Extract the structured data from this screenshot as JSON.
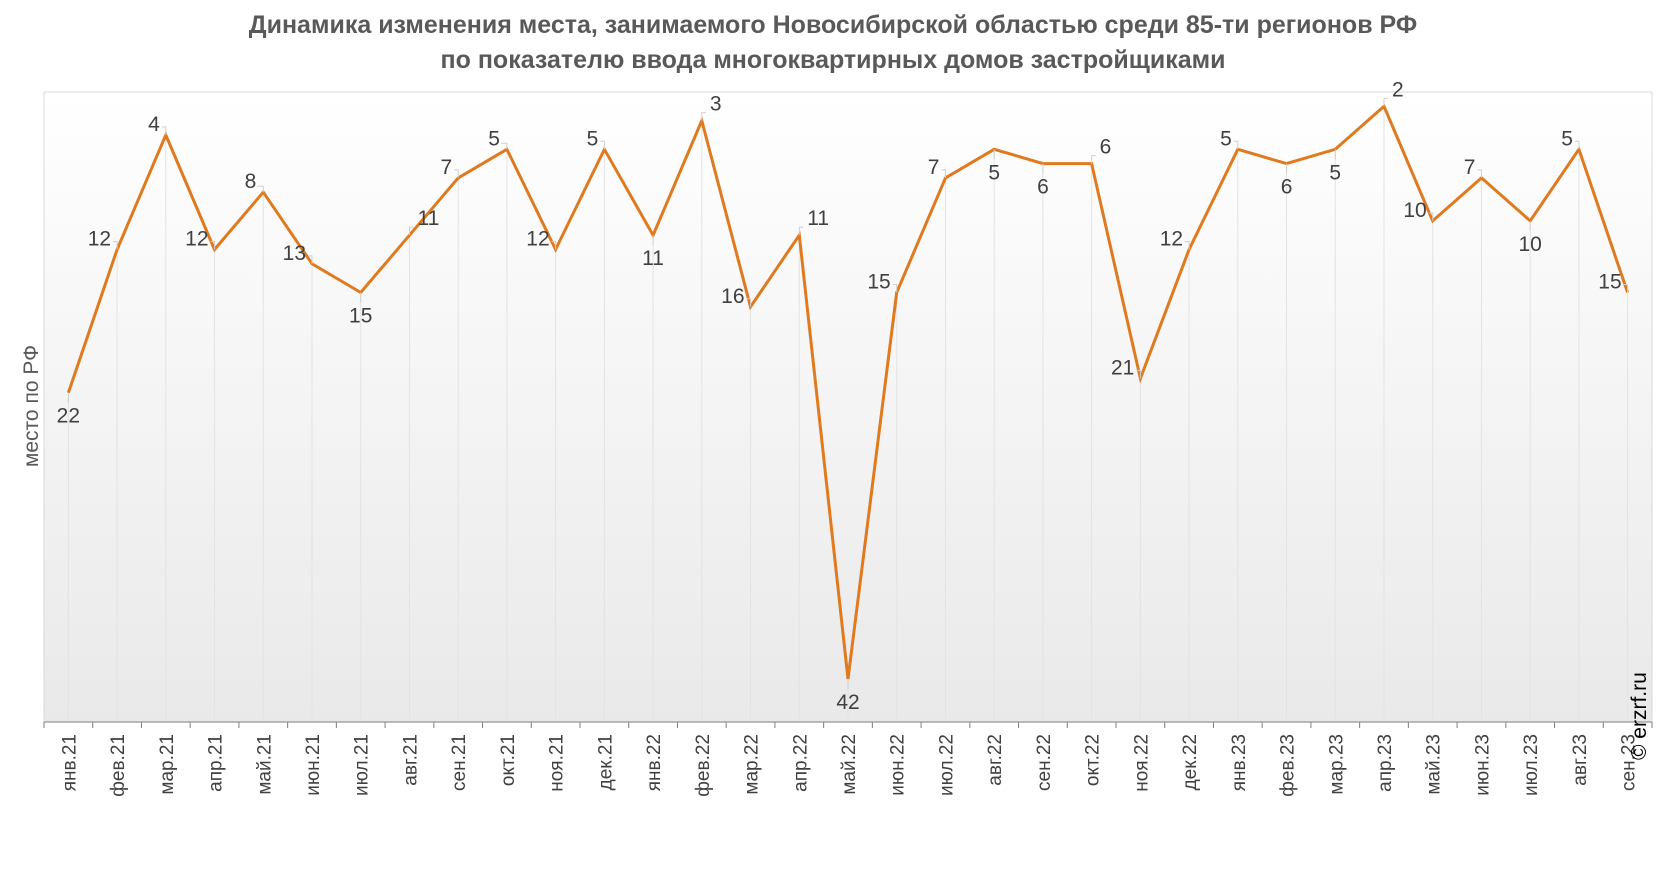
{
  "chart_data": {
    "type": "line",
    "title": "Динамика изменения места, занимаемого Новосибирской областью среди 85-ти регионов РФ",
    "subtitle": "по показателю ввода многоквартирных домов застройщиками",
    "ylabel": "место по РФ",
    "xlabel": "",
    "y_inverted": true,
    "ylim": [
      1,
      45
    ],
    "grid": false,
    "line_color": "#E07A1F",
    "categories": [
      "янв.21",
      "фев.21",
      "мар.21",
      "апр.21",
      "май.21",
      "июн.21",
      "июл.21",
      "авг.21",
      "сен.21",
      "окт.21",
      "ноя.21",
      "дек.21",
      "янв.22",
      "фев.22",
      "мар.22",
      "апр.22",
      "май.22",
      "июн.22",
      "июл.22",
      "авг.22",
      "сен.22",
      "окт.22",
      "ноя.22",
      "дек.22",
      "янв.23",
      "фев.23",
      "мар.23",
      "апр.23",
      "май.23",
      "июн.23",
      "июл.23",
      "авг.23",
      "сен.23"
    ],
    "series": [
      {
        "name": "",
        "values": [
          22,
          12,
          4,
          12,
          8,
          13,
          15,
          11,
          7,
          5,
          12,
          5,
          11,
          3,
          16,
          11,
          42,
          15,
          7,
          5,
          6,
          6,
          21,
          12,
          5,
          6,
          5,
          2,
          10,
          7,
          10,
          5,
          15
        ]
      }
    ],
    "label_positions": [
      "below",
      "left",
      "left",
      "left",
      "above",
      "left",
      "below",
      "right",
      "left",
      "above",
      "left",
      "left",
      "below",
      "right",
      "left",
      "right",
      "below",
      "left",
      "left",
      "below",
      "below",
      "right",
      "left",
      "left",
      "left",
      "below",
      "below",
      "right",
      "left",
      "left",
      "below",
      "left",
      "left"
    ]
  },
  "copyright": "© erzrf.ru"
}
